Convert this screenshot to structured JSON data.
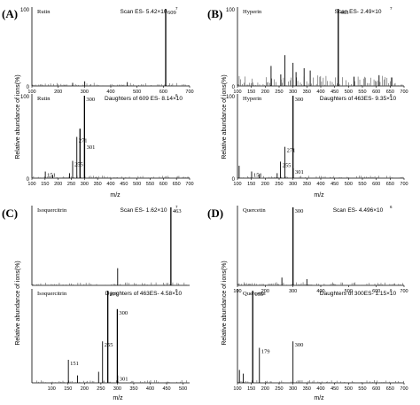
{
  "figure": {
    "bg": "#ffffff",
    "ink": "#000000",
    "noise_color": "#555555"
  },
  "panels": [
    {
      "letter": "(A)",
      "ylabel": "Relative abundance of ions(%)",
      "xlabel": "m/z",
      "top": {
        "name": "Rutin",
        "scan_label": "Scan  ES-  5.42×10",
        "scan_exp": "7",
        "xlim": [
          100,
          700
        ],
        "ylim": [
          0,
          100
        ],
        "xticks": [
          "100",
          "200",
          "300",
          "400",
          "500",
          "600",
          "700"
        ],
        "yticks": [
          "0",
          "100"
        ],
        "peaks": [
          {
            "mz": 609,
            "rel": 100,
            "label": "609"
          },
          {
            "mz": 301,
            "rel": 6,
            "label": ""
          },
          {
            "mz": 463,
            "rel": 5,
            "label": ""
          },
          {
            "mz": 255,
            "rel": 4,
            "label": ""
          }
        ]
      },
      "bottom": {
        "name": "Rutin",
        "scan_label": "Daughters of 609  ES-  8.14×10",
        "scan_exp": "6",
        "xlim": [
          100,
          700
        ],
        "ylim": [
          0,
          100
        ],
        "xticks": [
          "100",
          "150",
          "200",
          "250",
          "300",
          "350",
          "400",
          "450",
          "500",
          "550",
          "600",
          "650",
          "700"
        ],
        "yticks": [
          "0",
          "100"
        ],
        "peaks": [
          {
            "mz": 300,
            "rel": 100,
            "label": "300"
          },
          {
            "mz": 301,
            "rel": 42,
            "label": "301"
          },
          {
            "mz": 271,
            "rel": 50,
            "label": "271"
          },
          {
            "mz": 255,
            "rel": 21,
            "label": "255"
          },
          {
            "mz": 151,
            "rel": 8,
            "label": "151"
          },
          {
            "mz": 179,
            "rel": 4,
            "label": ""
          },
          {
            "mz": 243,
            "rel": 6,
            "label": ""
          },
          {
            "mz": 283,
            "rel": 60,
            "label": ""
          }
        ]
      }
    },
    {
      "letter": "(B)",
      "ylabel": "Relative abundance of ions(%)",
      "xlabel": "m/z",
      "top": {
        "name": "Hyperin",
        "scan_label": "Scan  ES-  2.49×10",
        "scan_exp": "7",
        "xlim": [
          100,
          700
        ],
        "ylim": [
          0,
          100
        ],
        "xticks": [
          "100",
          "150",
          "200",
          "250",
          "300",
          "350",
          "400",
          "450",
          "500",
          "550",
          "600",
          "650",
          "700"
        ],
        "yticks": [
          "0",
          "100"
        ],
        "peaks": [
          {
            "mz": 463,
            "rel": 100,
            "label": "463"
          },
          {
            "mz": 300,
            "rel": 30,
            "label": ""
          },
          {
            "mz": 271,
            "rel": 40,
            "label": ""
          },
          {
            "mz": 221,
            "rel": 26,
            "label": ""
          },
          {
            "mz": 340,
            "rel": 23,
            "label": ""
          },
          {
            "mz": 362,
            "rel": 20,
            "label": ""
          },
          {
            "mz": 311,
            "rel": 18,
            "label": ""
          },
          {
            "mz": 256,
            "rel": 15,
            "label": ""
          },
          {
            "mz": 520,
            "rel": 12,
            "label": ""
          },
          {
            "mz": 610,
            "rel": 14,
            "label": ""
          },
          {
            "mz": 655,
            "rel": 11,
            "label": ""
          }
        ]
      },
      "bottom": {
        "name": "Hyperin",
        "scan_label": "Daughters of 463ES-  9.35×10",
        "scan_exp": "6",
        "xlim": [
          100,
          700
        ],
        "ylim": [
          0,
          100
        ],
        "xticks": [
          "100",
          "150",
          "200",
          "250",
          "300",
          "350",
          "400",
          "450",
          "500",
          "550",
          "600",
          "650",
          "700"
        ],
        "yticks": [
          "0",
          "100"
        ],
        "peaks": [
          {
            "mz": 300,
            "rel": 100,
            "label": "300"
          },
          {
            "mz": 271,
            "rel": 38,
            "label": "271"
          },
          {
            "mz": 255,
            "rel": 20,
            "label": "255"
          },
          {
            "mz": 301,
            "rel": 12,
            "label": "301"
          },
          {
            "mz": 151,
            "rel": 8,
            "label": "151"
          },
          {
            "mz": 106,
            "rel": 15,
            "label": ""
          },
          {
            "mz": 179,
            "rel": 5,
            "label": ""
          },
          {
            "mz": 243,
            "rel": 6,
            "label": ""
          }
        ]
      }
    },
    {
      "letter": "(C)",
      "ylabel": "Relative abundance of ions(%)",
      "xlabel": "m/z",
      "top": {
        "name": "Isoquercitrin",
        "scan_label": "Scan  ES-  1.62×10",
        "scan_exp": "7",
        "xlim": [
          40,
          520
        ],
        "ylim": [
          0,
          100
        ],
        "xticks": [],
        "yticks": [],
        "peaks": [
          {
            "mz": 463,
            "rel": 100,
            "label": "463"
          },
          {
            "mz": 301,
            "rel": 22,
            "label": ""
          }
        ]
      },
      "bottom": {
        "name": "Isoquercitrin",
        "scan_label": "Daughters of 463ES-  4.58×10",
        "scan_exp": "6",
        "xlim": [
          40,
          520
        ],
        "ylim": [
          0,
          100
        ],
        "xticks": [
          "100",
          "150",
          "200",
          "250",
          "300",
          "350",
          "400",
          "450",
          "500"
        ],
        "yticks": [],
        "peaks": [
          {
            "mz": 271,
            "rel": 100,
            "label": "271"
          },
          {
            "mz": 300,
            "rel": 80,
            "label": "300"
          },
          {
            "mz": 255,
            "rel": 45,
            "label": "255"
          },
          {
            "mz": 151,
            "rel": 25,
            "label": "151"
          },
          {
            "mz": 301,
            "rel": 8,
            "label": "301"
          },
          {
            "mz": 179,
            "rel": 8,
            "label": ""
          },
          {
            "mz": 243,
            "rel": 12,
            "label": ""
          }
        ]
      }
    },
    {
      "letter": "(D)",
      "ylabel": "Relative abundance of ions(%)",
      "xlabel": "m/z",
      "top": {
        "name": "Quercetin",
        "scan_label": "Scan  ES-  4.496×10",
        "scan_exp": "6",
        "xlim": [
          100,
          700
        ],
        "ylim": [
          0,
          100
        ],
        "xticks": [
          "100",
          "200",
          "300",
          "400",
          "500",
          "600",
          "700"
        ],
        "yticks": [],
        "peaks": [
          {
            "mz": 300,
            "rel": 100,
            "label": "300"
          },
          {
            "mz": 260,
            "rel": 10,
            "label": ""
          },
          {
            "mz": 350,
            "rel": 8,
            "label": ""
          }
        ]
      },
      "bottom": {
        "name": "Quercetin",
        "scan_label": "Daughters of 300ES-  1.15×10",
        "scan_exp": "6",
        "xlim": [
          100,
          700
        ],
        "ylim": [
          0,
          100
        ],
        "xticks": [
          "100",
          "150",
          "200",
          "250",
          "300",
          "350",
          "400",
          "450",
          "500",
          "550",
          "600",
          "650",
          "700"
        ],
        "yticks": [],
        "peaks": [
          {
            "mz": 155,
            "rel": 100,
            "label": "155"
          },
          {
            "mz": 179,
            "rel": 38,
            "label": "179"
          },
          {
            "mz": 300,
            "rel": 45,
            "label": "300"
          },
          {
            "mz": 121,
            "rel": 10,
            "label": ""
          },
          {
            "mz": 107,
            "rel": 14,
            "label": ""
          }
        ]
      }
    }
  ],
  "chart_data": [
    {
      "type": "bar",
      "panel": "(A) top",
      "title": "Rutin",
      "subtitle": "Scan ES- 5.42×10^7",
      "xlabel": "m/z",
      "ylabel": "Relative abundance of ions(%)",
      "xlim": [
        100,
        700
      ],
      "ylim": [
        0,
        100
      ],
      "x": [
        609,
        301,
        463,
        255
      ],
      "values": [
        100,
        6,
        5,
        4
      ]
    },
    {
      "type": "bar",
      "panel": "(A) bottom",
      "title": "Rutin",
      "subtitle": "Daughters of 609 ES- 8.14×10^6",
      "xlabel": "m/z",
      "ylabel": "Relative abundance of ions(%)",
      "xlim": [
        100,
        700
      ],
      "ylim": [
        0,
        100
      ],
      "x": [
        300,
        301,
        271,
        255,
        151
      ],
      "values": [
        100,
        42,
        50,
        21,
        8
      ]
    },
    {
      "type": "bar",
      "panel": "(B) top",
      "title": "Hyperin",
      "subtitle": "Scan ES- 2.49×10^7",
      "xlabel": "m/z",
      "ylabel": "Relative abundance of ions(%)",
      "xlim": [
        100,
        700
      ],
      "ylim": [
        0,
        100
      ],
      "x": [
        463,
        300,
        271,
        221
      ],
      "values": [
        100,
        30,
        40,
        26
      ]
    },
    {
      "type": "bar",
      "panel": "(B) bottom",
      "title": "Hyperin",
      "subtitle": "Daughters of 463ES- 9.35×10^6",
      "xlabel": "m/z",
      "ylabel": "Relative abundance of ions(%)",
      "xlim": [
        100,
        700
      ],
      "ylim": [
        0,
        100
      ],
      "x": [
        300,
        271,
        255,
        301,
        151
      ],
      "values": [
        100,
        38,
        20,
        12,
        8
      ]
    },
    {
      "type": "bar",
      "panel": "(C) top",
      "title": "Isoquercitrin",
      "subtitle": "Scan ES- 1.62×10^7",
      "xlabel": "m/z",
      "ylabel": "Relative abundance of ions(%)",
      "xlim": [
        40,
        520
      ],
      "ylim": [
        0,
        100
      ],
      "x": [
        463,
        301
      ],
      "values": [
        100,
        22
      ]
    },
    {
      "type": "bar",
      "panel": "(C) bottom",
      "title": "Isoquercitrin",
      "subtitle": "Daughters of 463ES- 4.58×10^6",
      "xlabel": "m/z",
      "ylabel": "Relative abundance of ions(%)",
      "xlim": [
        40,
        520
      ],
      "ylim": [
        0,
        100
      ],
      "x": [
        271,
        300,
        255,
        151,
        301
      ],
      "values": [
        100,
        80,
        45,
        25,
        8
      ]
    },
    {
      "type": "bar",
      "panel": "(D) top",
      "title": "Quercetin",
      "subtitle": "Scan ES- 4.496×10^6",
      "xlabel": "m/z",
      "ylabel": "Relative abundance of ions(%)",
      "xlim": [
        100,
        700
      ],
      "ylim": [
        0,
        100
      ],
      "x": [
        300
      ],
      "values": [
        100
      ]
    },
    {
      "type": "bar",
      "panel": "(D) bottom",
      "title": "Quercetin",
      "subtitle": "Daughters of 300ES- 1.15×10^6",
      "xlabel": "m/z",
      "ylabel": "Relative abundance of ions(%)",
      "xlim": [
        100,
        700
      ],
      "ylim": [
        0,
        100
      ],
      "x": [
        155,
        179,
        300
      ],
      "values": [
        100,
        38,
        45
      ]
    }
  ]
}
